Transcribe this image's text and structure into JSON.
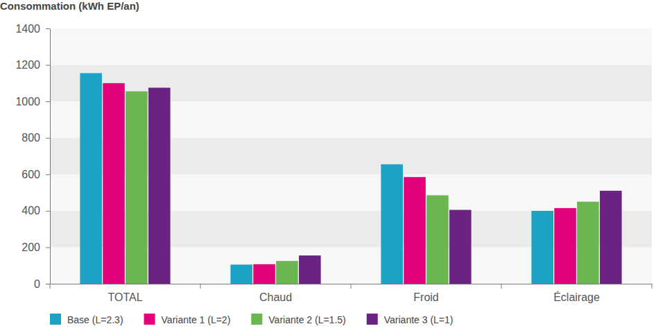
{
  "chart_data": {
    "type": "bar",
    "title": "Consommation (kWh EP/an)",
    "categories": [
      "TOTAL",
      "Chaud",
      "Froid",
      "Éclairage"
    ],
    "series": [
      {
        "name": "Base (L=2.3)",
        "color": "#1ba3c6",
        "values": [
          1155,
          105,
          655,
          400
        ]
      },
      {
        "name": "Variante 1 (L=2)",
        "color": "#e2037c",
        "values": [
          1100,
          107,
          585,
          415
        ]
      },
      {
        "name": "Variante 2 (L=1.5)",
        "color": "#6cb652",
        "values": [
          1055,
          125,
          485,
          450
        ]
      },
      {
        "name": "Variante 3 (L=1)",
        "color": "#6b2383",
        "values": [
          1075,
          155,
          405,
          510
        ]
      }
    ],
    "ylim": [
      0,
      1400
    ],
    "yticks": [
      0,
      200,
      400,
      600,
      800,
      1000,
      1200,
      1400
    ],
    "grid": true,
    "legend": "bottom-left"
  }
}
